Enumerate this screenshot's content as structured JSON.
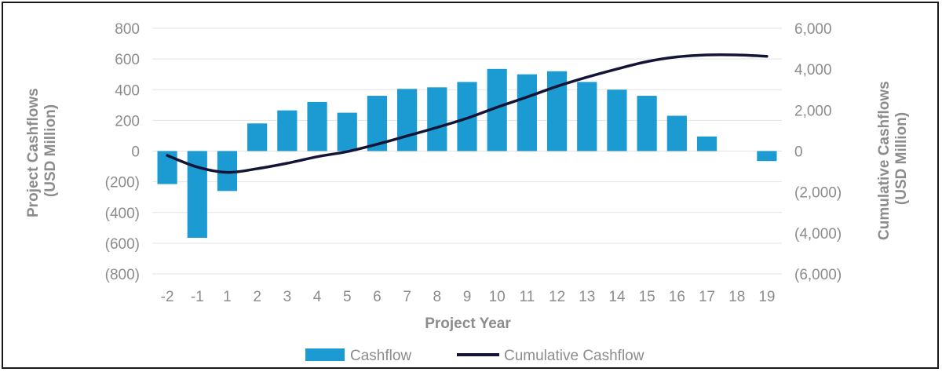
{
  "chart_data": {
    "type": "bar",
    "categories": [
      "-2",
      "-1",
      "1",
      "2",
      "3",
      "4",
      "5",
      "6",
      "7",
      "8",
      "9",
      "10",
      "11",
      "12",
      "13",
      "14",
      "15",
      "16",
      "17",
      "18",
      "19"
    ],
    "series": [
      {
        "name": "Cashflow",
        "type": "bar",
        "axis": "left",
        "color": "#1b9bd1",
        "values": [
          -215,
          -565,
          -260,
          180,
          265,
          320,
          250,
          360,
          405,
          415,
          450,
          535,
          500,
          520,
          450,
          400,
          360,
          230,
          95,
          0,
          -65
        ]
      },
      {
        "name": "Cumulative Cashflow",
        "type": "line",
        "axis": "right",
        "color": "#141436",
        "values": [
          -215,
          -780,
          -1040,
          -860,
          -595,
          -275,
          -25,
          335,
          740,
          1155,
          1605,
          2140,
          2640,
          3160,
          3610,
          4010,
          4370,
          4600,
          4695,
          4695,
          4630
        ]
      }
    ],
    "xlabel": "Project Year",
    "ylabel_left": [
      "Project Cashflows",
      "(USD Million)"
    ],
    "ylabel_right": [
      "Cumulative Cashflows",
      "(USD Million)"
    ],
    "ylim_left": [
      -800,
      800
    ],
    "ylim_right": [
      -6000,
      6000
    ],
    "yticks_left": [
      {
        "v": 800,
        "label": "800"
      },
      {
        "v": 600,
        "label": "600"
      },
      {
        "v": 400,
        "label": "400"
      },
      {
        "v": 200,
        "label": "200"
      },
      {
        "v": 0,
        "label": "0"
      },
      {
        "v": -200,
        "label": "(200)"
      },
      {
        "v": -400,
        "label": "(400)"
      },
      {
        "v": -600,
        "label": "(600)"
      },
      {
        "v": -800,
        "label": "(800)"
      }
    ],
    "yticks_right": [
      {
        "v": 6000,
        "label": "6,000"
      },
      {
        "v": 4000,
        "label": "4,000"
      },
      {
        "v": 2000,
        "label": "2,000"
      },
      {
        "v": 0,
        "label": "0"
      },
      {
        "v": -2000,
        "label": "(2,000)"
      },
      {
        "v": -4000,
        "label": "(4,000)"
      },
      {
        "v": -6000,
        "label": "(6,000)"
      }
    ],
    "grid": true,
    "legend_position": "bottom"
  }
}
